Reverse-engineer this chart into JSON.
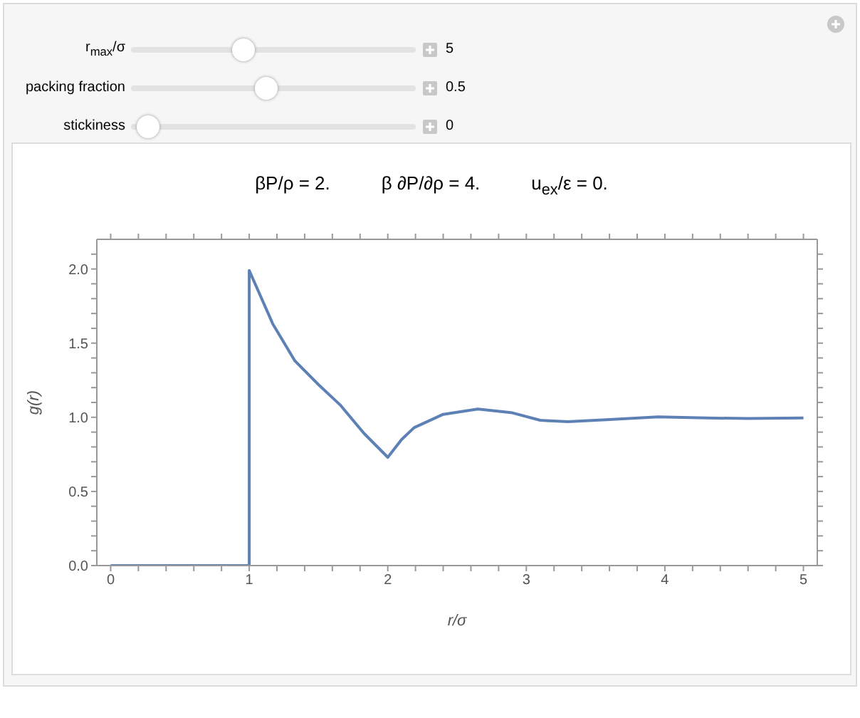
{
  "chart_data": {
    "type": "line",
    "xlabel": "r/σ",
    "ylabel": "g(r)",
    "annotations": [
      "r$_{max}$/σ",
      "5",
      "packing fraction",
      "0.5",
      "stickiness",
      "0",
      "βP/ρ = 2.",
      "β ∂P/∂ρ = 4.",
      "u$_{ex}$/ε = 0."
    ],
    "x": [
      0,
      1,
      1,
      1.17,
      1.33,
      1.5,
      1.66,
      1.83,
      2,
      2.1,
      2.19,
      2.4,
      2.65,
      2.9,
      3.1,
      3.3,
      3.6,
      3.95,
      4.3,
      4.6,
      5
    ],
    "series": [
      {
        "color": "#5e81b5",
        "values": [
          0,
          0,
          1.99,
          1.63,
          1.38,
          1.22,
          1.08,
          0.89,
          0.73,
          0.85,
          0.93,
          1.02,
          1.056,
          1.03,
          0.98,
          0.97,
          0.985,
          1.003,
          0.995,
          0.992,
          0.995
        ]
      }
    ],
    "xlim": [
      -0.1,
      5.1
    ],
    "ylim": [
      0,
      2.2
    ],
    "xticks": [
      0,
      {
        "value": 0.2,
        "label": null
      },
      {
        "value": 0.4,
        "label": null
      },
      {
        "value": 0.6,
        "label": null
      },
      {
        "value": 0.8,
        "label": null
      },
      1,
      {
        "value": 1.2,
        "label": null
      },
      {
        "value": 1.4,
        "label": null
      },
      {
        "value": 1.6,
        "label": null
      },
      {
        "value": 1.8,
        "label": null
      },
      2,
      {
        "value": 2.2,
        "label": null
      },
      {
        "value": 2.4,
        "label": null
      },
      {
        "value": 2.6,
        "label": null
      },
      {
        "value": 2.8,
        "label": null
      },
      3,
      {
        "value": 3.2,
        "label": null
      },
      {
        "value": 3.4,
        "label": null
      },
      {
        "value": 3.6,
        "label": null
      },
      {
        "value": 3.8,
        "label": null
      },
      4,
      {
        "value": 4.2,
        "label": null
      },
      {
        "value": 4.4,
        "label": null
      },
      {
        "value": 4.6,
        "label": null
      },
      {
        "value": 4.8,
        "label": null
      },
      5
    ],
    "yticks": [
      {
        "value": 0,
        "label": "0.0"
      },
      {
        "value": 0.1,
        "label": null
      },
      {
        "value": 0.2,
        "label": null
      },
      {
        "value": 0.3,
        "label": null
      },
      {
        "value": 0.4,
        "label": null
      },
      {
        "value": 0.5,
        "label": "0.5"
      },
      {
        "value": 0.6,
        "label": null
      },
      {
        "value": 0.7,
        "label": null
      },
      {
        "value": 0.8,
        "label": null
      },
      {
        "value": 0.9,
        "label": null
      },
      {
        "value": 1,
        "label": "1.0"
      },
      {
        "value": 1.1,
        "label": null
      },
      {
        "value": 1.2,
        "label": null
      },
      {
        "value": 1.3,
        "label": null
      },
      {
        "value": 1.4,
        "label": null
      },
      {
        "value": 1.5,
        "label": "1.5"
      },
      {
        "value": 1.6,
        "label": null
      },
      {
        "value": 1.7,
        "label": null
      },
      {
        "value": 1.8,
        "label": null
      },
      {
        "value": 1.9,
        "label": null
      },
      {
        "value": 2,
        "label": "2.0"
      },
      {
        "value": 2.1,
        "label": null
      }
    ],
    "grid": false,
    "legend": false,
    "marker": "none",
    "line_style": "solid"
  }
}
